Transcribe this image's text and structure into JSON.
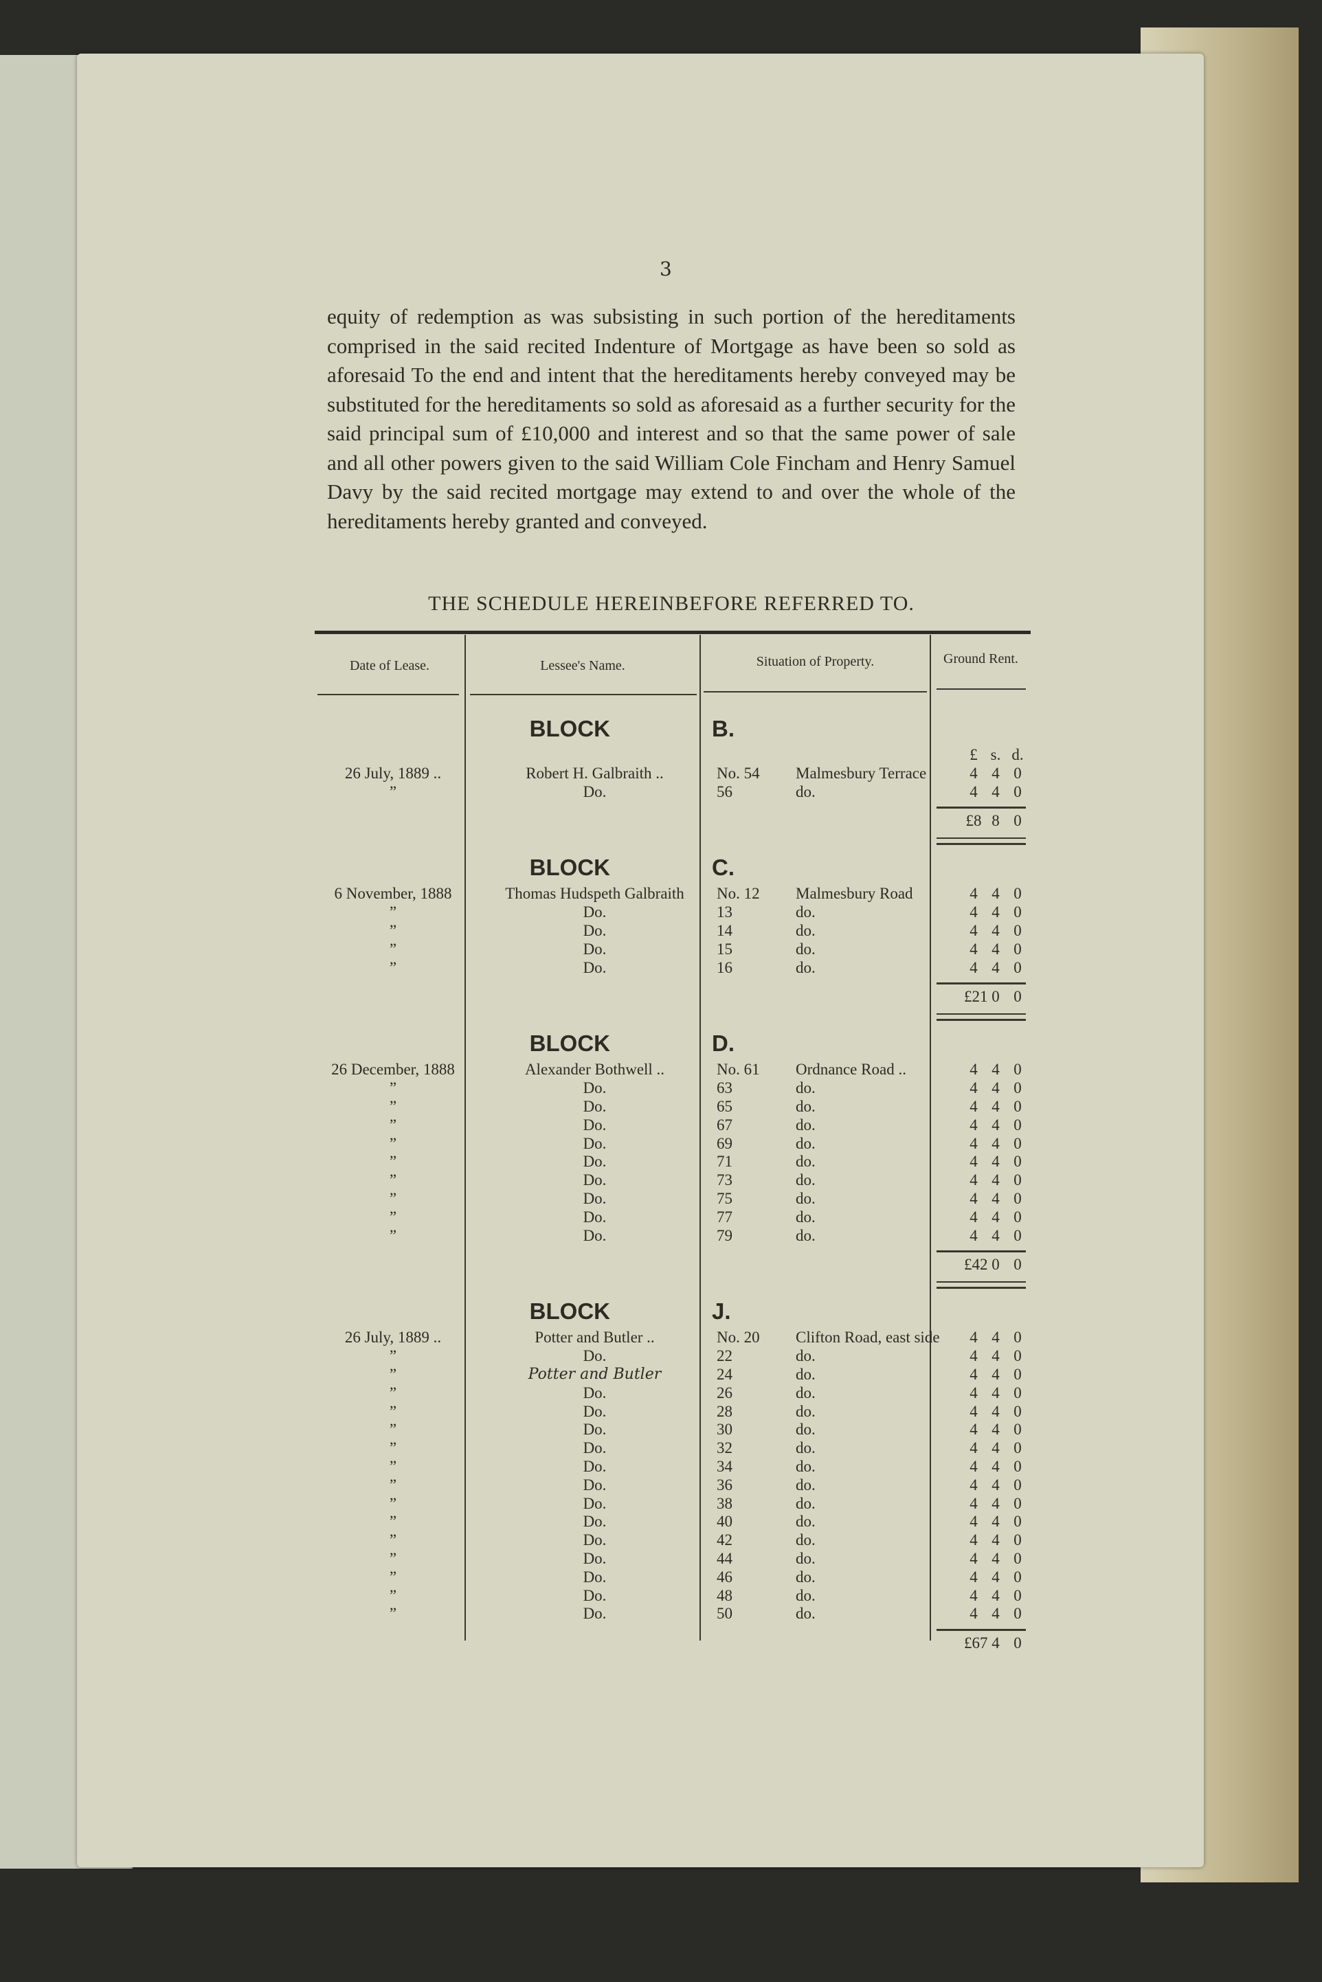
{
  "page_number": "3",
  "paragraph": "equity of redemption as was subsisting in such portion of the hereditaments comprised in the said recited Indenture of Mortgage as have been so sold as aforesaid To the end and intent that the hereditaments hereby conveyed may be substituted for the hereditaments so sold as aforesaid as a further security for the said principal sum of £10,000 and interest and so that the same power of sale and all other powers given to the said William Cole Fincham and Henry Samuel Davy by the said recited mortgage may extend to and over the whole of the hereditaments hereby granted and conveyed.",
  "schedule_title": "THE SCHEDULE HEREINBEFORE REFERRED TO.",
  "headers": {
    "date": "Date of Lease.",
    "name": "Lessee's Name.",
    "situation": "Situation of Property.",
    "rent": "Ground Rent."
  },
  "rent_units": [
    "£",
    "s.",
    "d."
  ],
  "blocks": [
    {
      "word": "BLOCK",
      "letter": "B.",
      "show_units": true,
      "rows": [
        {
          "date": "26 July, 1889  ..",
          "name": "Robert H. Galbraith      ..",
          "no": "No. 54",
          "place": "Malmesbury Terrace",
          "rent": [
            "4",
            "4",
            "0"
          ]
        },
        {
          "date": "”",
          "name": "Do.",
          "no": "56",
          "place": "do.",
          "rent": [
            "4",
            "4",
            "0"
          ]
        }
      ],
      "total": [
        "£8",
        "8",
        "0"
      ]
    },
    {
      "word": "BLOCK",
      "letter": "C.",
      "rows": [
        {
          "date": "6 November, 1888",
          "name": "Thomas Hudspeth Galbraith",
          "no": "No. 12",
          "place": "Malmesbury  Road",
          "rent": [
            "4",
            "4",
            "0"
          ]
        },
        {
          "date": "”",
          "name": "Do.",
          "no": "13",
          "place": "do.",
          "rent": [
            "4",
            "4",
            "0"
          ]
        },
        {
          "date": "”",
          "name": "Do.",
          "no": "14",
          "place": "do.",
          "rent": [
            "4",
            "4",
            "0"
          ]
        },
        {
          "date": "”",
          "name": "Do.",
          "no": "15",
          "place": "do.",
          "rent": [
            "4",
            "4",
            "0"
          ]
        },
        {
          "date": "”",
          "name": "Do.",
          "no": "16",
          "place": "do.",
          "rent": [
            "4",
            "4",
            "0"
          ]
        }
      ],
      "total": [
        "£21",
        "0",
        "0"
      ]
    },
    {
      "word": "BLOCK",
      "letter": "D.",
      "rows": [
        {
          "date": "26 December, 1888",
          "name": "Alexander Bothwell  ..",
          "no": "No. 61",
          "place": "Ordnance Road  ..",
          "rent": [
            "4",
            "4",
            "0"
          ]
        },
        {
          "date": "”",
          "name": "Do.",
          "no": "63",
          "place": "do.",
          "rent": [
            "4",
            "4",
            "0"
          ]
        },
        {
          "date": "”",
          "name": "Do.",
          "no": "65",
          "place": "do.",
          "rent": [
            "4",
            "4",
            "0"
          ]
        },
        {
          "date": "”",
          "name": "Do.",
          "no": "67",
          "place": "do.",
          "rent": [
            "4",
            "4",
            "0"
          ]
        },
        {
          "date": "”",
          "name": "Do.",
          "no": "69",
          "place": "do.",
          "rent": [
            "4",
            "4",
            "0"
          ]
        },
        {
          "date": "”",
          "name": "Do.",
          "no": "71",
          "place": "do.",
          "rent": [
            "4",
            "4",
            "0"
          ]
        },
        {
          "date": "”",
          "name": "Do.",
          "no": "73",
          "place": "do.",
          "rent": [
            "4",
            "4",
            "0"
          ]
        },
        {
          "date": "”",
          "name": "Do.",
          "no": "75",
          "place": "do.",
          "rent": [
            "4",
            "4",
            "0"
          ]
        },
        {
          "date": "”",
          "name": "Do.",
          "no": "77",
          "place": "do.",
          "rent": [
            "4",
            "4",
            "0"
          ]
        },
        {
          "date": "”",
          "name": "Do.",
          "no": "79",
          "place": "do.",
          "rent": [
            "4",
            "4",
            "0"
          ]
        }
      ],
      "total": [
        "£42",
        "0",
        "0"
      ]
    },
    {
      "word": "BLOCK",
      "letter": "J.",
      "rows": [
        {
          "date": "26 July, 1889  ..",
          "name": "Potter and Butler   ..",
          "no": "No. 20",
          "place": "Clifton Road, east side",
          "rent": [
            "4",
            "4",
            "0"
          ]
        },
        {
          "date": "”",
          "name": "Do.",
          "no": "22",
          "place": "do.",
          "rent": [
            "4",
            "4",
            "0"
          ]
        },
        {
          "date": "”",
          "name": "Potter and Butler",
          "handwritten": true,
          "no": "24",
          "place": "do.",
          "rent": [
            "4",
            "4",
            "0"
          ]
        },
        {
          "date": "”",
          "name": "Do.",
          "no": "26",
          "place": "do.",
          "rent": [
            "4",
            "4",
            "0"
          ]
        },
        {
          "date": "”",
          "name": "Do.",
          "no": "28",
          "place": "do.",
          "rent": [
            "4",
            "4",
            "0"
          ]
        },
        {
          "date": "”",
          "name": "Do.",
          "no": "30",
          "place": "do.",
          "rent": [
            "4",
            "4",
            "0"
          ]
        },
        {
          "date": "”",
          "name": "Do.",
          "no": "32",
          "place": "do.",
          "rent": [
            "4",
            "4",
            "0"
          ]
        },
        {
          "date": "”",
          "name": "Do.",
          "no": "34",
          "place": "do.",
          "rent": [
            "4",
            "4",
            "0"
          ]
        },
        {
          "date": "”",
          "name": "Do.",
          "no": "36",
          "place": "do.",
          "rent": [
            "4",
            "4",
            "0"
          ]
        },
        {
          "date": "”",
          "name": "Do.",
          "no": "38",
          "place": "do.",
          "rent": [
            "4",
            "4",
            "0"
          ]
        },
        {
          "date": "”",
          "name": "Do.",
          "no": "40",
          "place": "do.",
          "rent": [
            "4",
            "4",
            "0"
          ]
        },
        {
          "date": "”",
          "name": "Do.",
          "no": "42",
          "place": "do.",
          "rent": [
            "4",
            "4",
            "0"
          ]
        },
        {
          "date": "”",
          "name": "Do.",
          "no": "44",
          "place": "do.",
          "rent": [
            "4",
            "4",
            "0"
          ]
        },
        {
          "date": "”",
          "name": "Do.",
          "no": "46",
          "place": "do.",
          "rent": [
            "4",
            "4",
            "0"
          ]
        },
        {
          "date": "”",
          "name": "Do.",
          "no": "48",
          "place": "do.",
          "rent": [
            "4",
            "4",
            "0"
          ]
        },
        {
          "date": "”",
          "name": "Do.",
          "no": "50",
          "place": "do.",
          "rent": [
            "4",
            "4",
            "0"
          ]
        }
      ],
      "total": [
        "£67",
        "4",
        "0"
      ]
    }
  ]
}
